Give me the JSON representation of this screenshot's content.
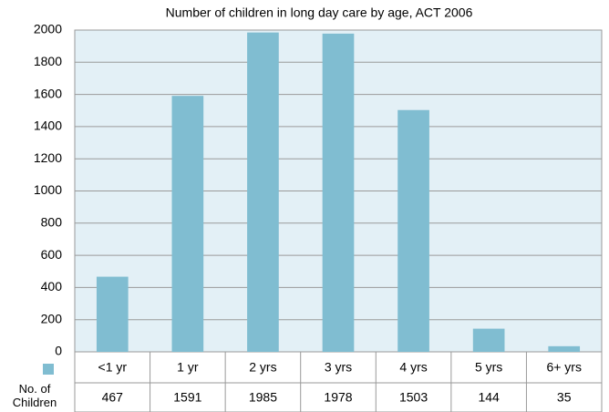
{
  "chart_data": {
    "type": "bar",
    "title": "Number of children in long day care by age, ACT 2006",
    "categories": [
      "<1 yr",
      "1 yr",
      "2 yrs",
      "3 yrs",
      "4 yrs",
      "5 yrs",
      "6+ yrs"
    ],
    "series": [
      {
        "name": "No. of Children",
        "color": "#80bdd1",
        "values": [
          467,
          1591,
          1985,
          1978,
          1503,
          144,
          35
        ]
      }
    ],
    "ylim": [
      0,
      2000
    ],
    "yticks": [
      0,
      200,
      400,
      600,
      800,
      1000,
      1200,
      1400,
      1600,
      1800,
      2000
    ],
    "grid": true
  }
}
